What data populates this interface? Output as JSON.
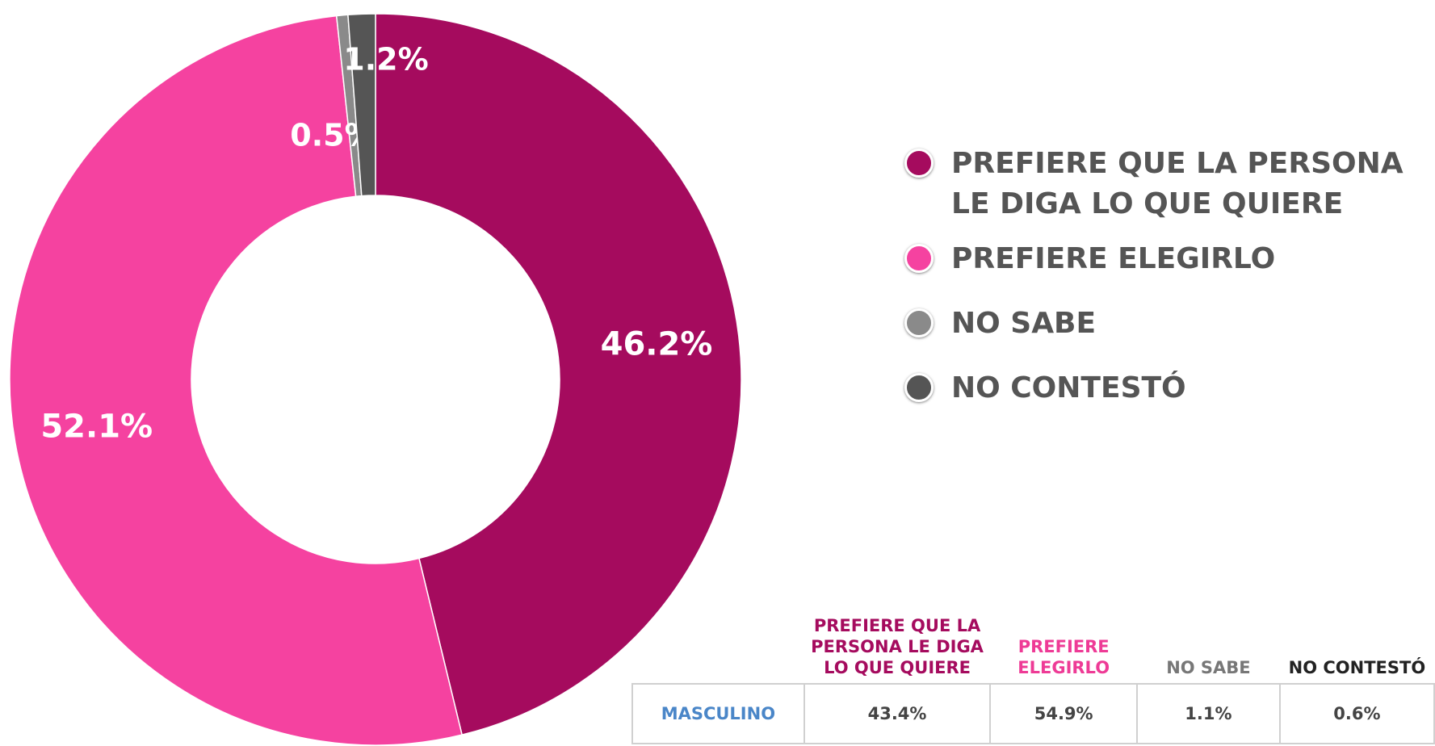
{
  "chart_data": {
    "type": "pie",
    "categories": [
      "PREFIERE QUE LA PERSONA LE DIGA LO QUE QUIERE",
      "PREFIERE ELEGIRLO",
      "NO SABE",
      "NO CONTESTÓ"
    ],
    "values": [
      46.2,
      52.1,
      0.5,
      1.2
    ],
    "value_labels": [
      "46.2%",
      "52.1%",
      "0.5%",
      "1.2%"
    ],
    "colors": [
      "#a50b5e",
      "#f542a0",
      "#8a8a8a",
      "#555555"
    ],
    "donut": true
  },
  "table": {
    "columns": [
      "PREFIERE QUE LA PERSONA LE DIGA LO QUE QUIERE",
      "PREFIERE ELEGIRLO",
      "NO SABE",
      "NO CONTESTÓ"
    ],
    "rows": [
      [
        "MASCULINO",
        "43.4%",
        "54.9%",
        "1.1%",
        "0.6%"
      ]
    ]
  }
}
